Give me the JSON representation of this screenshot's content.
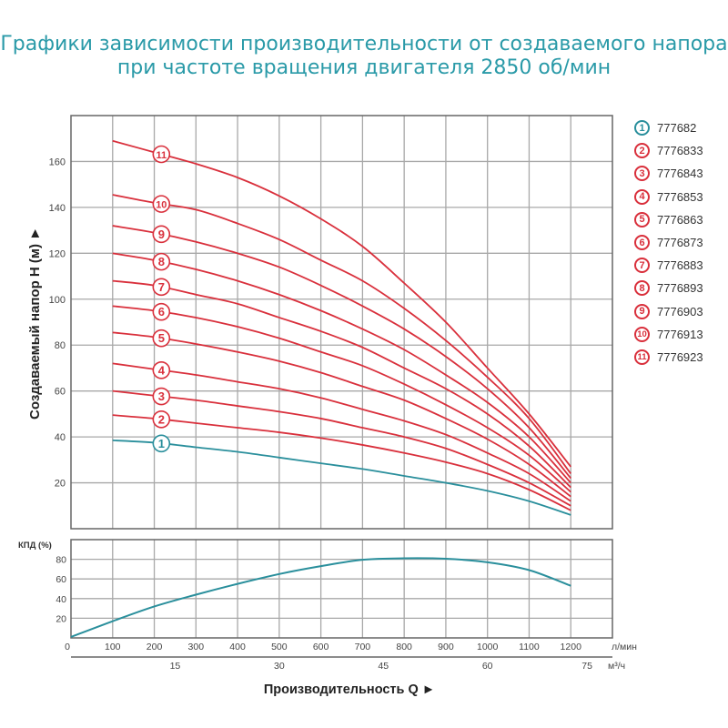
{
  "title": {
    "line1": "Графики зависимости производительности от создаваемого напора",
    "line2": "при частоте вращения двигателя 2850 об/мин"
  },
  "colors": {
    "title": "#2a9aa8",
    "red": "#d9303c",
    "blue": "#2a8f9c"
  },
  "chart_data": [
    {
      "type": "line",
      "ylabel": "Создаваемый напор H (м) ►",
      "x": [
        100,
        200,
        300,
        400,
        500,
        600,
        700,
        800,
        900,
        1000,
        1100,
        1200
      ],
      "xlim": [
        0,
        1300
      ],
      "ylim": [
        0,
        180
      ],
      "yticks": [
        20,
        40,
        60,
        80,
        100,
        120,
        140,
        160
      ],
      "grid": true,
      "series": [
        {
          "label": "1",
          "color": "#2a8f9c",
          "values": [
            38.5,
            37.5,
            35.5,
            33.5,
            31,
            28.5,
            26,
            23,
            20,
            16.5,
            12,
            6
          ]
        },
        {
          "label": "2",
          "color": "#d9303c",
          "values": [
            49.5,
            48,
            46,
            44,
            42,
            39.5,
            36.5,
            33,
            29,
            24,
            17,
            8
          ]
        },
        {
          "label": "3",
          "color": "#d9303c",
          "values": [
            60,
            58,
            56,
            53.5,
            51,
            48,
            44,
            40,
            35,
            28,
            20,
            10
          ]
        },
        {
          "label": "4",
          "color": "#d9303c",
          "values": [
            72,
            69.5,
            67,
            64,
            61,
            57,
            52,
            47,
            41,
            33,
            24,
            12
          ]
        },
        {
          "label": "5",
          "color": "#d9303c",
          "values": [
            85.5,
            83.5,
            80.5,
            77,
            73,
            68,
            62,
            56,
            48,
            39,
            28,
            14
          ]
        },
        {
          "label": "6",
          "color": "#d9303c",
          "values": [
            97,
            95,
            92,
            88,
            83,
            77,
            71,
            63,
            54,
            44,
            32,
            16
          ]
        },
        {
          "label": "7",
          "color": "#d9303c",
          "values": [
            108,
            106,
            102,
            98,
            92,
            86,
            79,
            70,
            61,
            50,
            36,
            18
          ]
        },
        {
          "label": "8",
          "color": "#d9303c",
          "values": [
            120,
            117,
            113,
            108,
            102,
            95,
            87,
            78,
            67,
            55,
            40,
            20
          ]
        },
        {
          "label": "9",
          "color": "#d9303c",
          "values": [
            132,
            129,
            125,
            120,
            114,
            106,
            97,
            87,
            75,
            61,
            44,
            22
          ]
        },
        {
          "label": "10",
          "color": "#d9303c",
          "values": [
            145.5,
            142,
            139,
            133,
            126,
            117,
            108,
            96,
            82,
            66,
            48,
            24
          ]
        },
        {
          "label": "11",
          "color": "#d9303c",
          "values": [
            169,
            164,
            159,
            153,
            145,
            135,
            123,
            107,
            90,
            70,
            50,
            27
          ]
        }
      ]
    },
    {
      "type": "line",
      "ylabel": "КПД (%)",
      "xlabel": "Производительность Q ►",
      "x": [
        0,
        100,
        200,
        300,
        400,
        500,
        600,
        700,
        800,
        900,
        1000,
        1100,
        1200
      ],
      "values": [
        1,
        17,
        32,
        44,
        55,
        65,
        73,
        79.5,
        81,
        80.5,
        77,
        69,
        53
      ],
      "color": "#2a8f9c",
      "xlim": [
        0,
        1300
      ],
      "ylim": [
        0,
        100
      ],
      "yticks": [
        20,
        40,
        60,
        80
      ],
      "xticks": [
        0,
        100,
        200,
        300,
        400,
        500,
        600,
        700,
        800,
        900,
        1000,
        1100,
        1200
      ],
      "x_unit": "л/мин",
      "x2ticks": [
        15,
        30,
        45,
        60,
        75
      ],
      "x2_unit": "м³/ч",
      "grid": true
    }
  ],
  "legend": [
    {
      "num": "1",
      "code": "777682",
      "color": "#2a8f9c"
    },
    {
      "num": "2",
      "code": "7776833",
      "color": "#d9303c"
    },
    {
      "num": "3",
      "code": "7776843",
      "color": "#d9303c"
    },
    {
      "num": "4",
      "code": "7776853",
      "color": "#d9303c"
    },
    {
      "num": "5",
      "code": "7776863",
      "color": "#d9303c"
    },
    {
      "num": "6",
      "code": "7776873",
      "color": "#d9303c"
    },
    {
      "num": "7",
      "code": "7776883",
      "color": "#d9303c"
    },
    {
      "num": "8",
      "code": "7776893",
      "color": "#d9303c"
    },
    {
      "num": "9",
      "code": "7776903",
      "color": "#d9303c"
    },
    {
      "num": "10",
      "code": "7776913",
      "color": "#d9303c"
    },
    {
      "num": "11",
      "code": "7776923",
      "color": "#d9303c"
    }
  ]
}
